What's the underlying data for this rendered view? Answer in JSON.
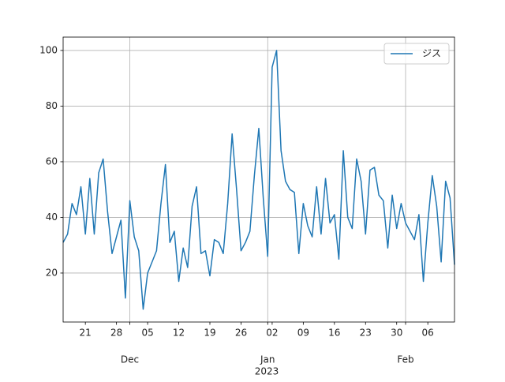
{
  "chart_data": {
    "type": "line",
    "x": [
      "2022-11-16",
      "2022-11-17",
      "2022-11-18",
      "2022-11-19",
      "2022-11-20",
      "2022-11-21",
      "2022-11-22",
      "2022-11-23",
      "2022-11-24",
      "2022-11-25",
      "2022-11-26",
      "2022-11-27",
      "2022-11-28",
      "2022-11-29",
      "2022-11-30",
      "2022-12-01",
      "2022-12-02",
      "2022-12-03",
      "2022-12-04",
      "2022-12-05",
      "2022-12-06",
      "2022-12-07",
      "2022-12-08",
      "2022-12-09",
      "2022-12-10",
      "2022-12-11",
      "2022-12-12",
      "2022-12-13",
      "2022-12-14",
      "2022-12-15",
      "2022-12-16",
      "2022-12-17",
      "2022-12-18",
      "2022-12-19",
      "2022-12-20",
      "2022-12-21",
      "2022-12-22",
      "2022-12-23",
      "2022-12-24",
      "2022-12-25",
      "2022-12-26",
      "2022-12-27",
      "2022-12-28",
      "2022-12-29",
      "2022-12-30",
      "2022-12-31",
      "2023-01-01",
      "2023-01-02",
      "2023-01-03",
      "2023-01-04",
      "2023-01-05",
      "2023-01-06",
      "2023-01-07",
      "2023-01-08",
      "2023-01-09",
      "2023-01-10",
      "2023-01-11",
      "2023-01-12",
      "2023-01-13",
      "2023-01-14",
      "2023-01-15",
      "2023-01-16",
      "2023-01-17",
      "2023-01-18",
      "2023-01-19",
      "2023-01-20",
      "2023-01-21",
      "2023-01-22",
      "2023-01-23",
      "2023-01-24",
      "2023-01-25",
      "2023-01-26",
      "2023-01-27",
      "2023-01-28",
      "2023-01-29",
      "2023-01-30",
      "2023-01-31",
      "2023-02-01",
      "2023-02-02",
      "2023-02-03",
      "2023-02-04",
      "2023-02-05",
      "2023-02-06",
      "2023-02-07",
      "2023-02-08",
      "2023-02-09",
      "2023-02-10",
      "2023-02-11",
      "2023-02-12"
    ],
    "series": [
      {
        "name": "ジス",
        "color": "#1f77b4",
        "values": [
          31,
          34,
          45,
          41,
          51,
          34,
          54,
          34,
          56,
          61,
          42,
          27,
          33,
          39,
          11,
          46,
          33,
          28,
          7,
          20,
          24,
          28,
          45,
          59,
          31,
          35,
          17,
          29,
          22,
          44,
          51,
          27,
          28,
          19,
          32,
          31,
          27,
          45,
          70,
          50,
          28,
          31,
          35,
          55,
          72,
          47,
          26,
          94,
          100,
          64,
          53,
          50,
          49,
          27,
          45,
          37,
          33,
          51,
          34,
          54,
          38,
          41,
          25,
          64,
          40,
          36,
          61,
          53,
          34,
          57,
          58,
          48,
          46,
          29,
          48,
          36,
          45,
          38,
          35,
          32,
          41,
          17,
          38,
          55,
          44,
          24,
          53,
          47,
          23
        ]
      }
    ],
    "xlim": [
      "2022-11-16",
      "2023-02-12"
    ],
    "xticks": [
      {
        "value": "2022-11-21",
        "label": "21"
      },
      {
        "value": "2022-11-28",
        "label": "28"
      },
      {
        "value": "2022-12-05",
        "label": "05"
      },
      {
        "value": "2022-12-12",
        "label": "12"
      },
      {
        "value": "2022-12-19",
        "label": "19"
      },
      {
        "value": "2022-12-26",
        "label": "26"
      },
      {
        "value": "2023-01-02",
        "label": "02"
      },
      {
        "value": "2023-01-09",
        "label": "09"
      },
      {
        "value": "2023-01-16",
        "label": "16"
      },
      {
        "value": "2023-01-23",
        "label": "23"
      },
      {
        "value": "2023-01-30",
        "label": "30"
      },
      {
        "value": "2023-02-06",
        "label": "06"
      }
    ],
    "xticks_month": [
      {
        "value": "2022-12-01",
        "label": "Dec"
      },
      {
        "value": "2023-01-01",
        "label": "Jan"
      },
      {
        "value": "2023-02-01",
        "label": "Feb"
      }
    ],
    "x_offset_label": "2023",
    "ylim": [
      2.4,
      104.8
    ],
    "yticks": [
      20,
      40,
      60,
      80,
      100
    ],
    "grid": true,
    "legend": "upper right"
  }
}
